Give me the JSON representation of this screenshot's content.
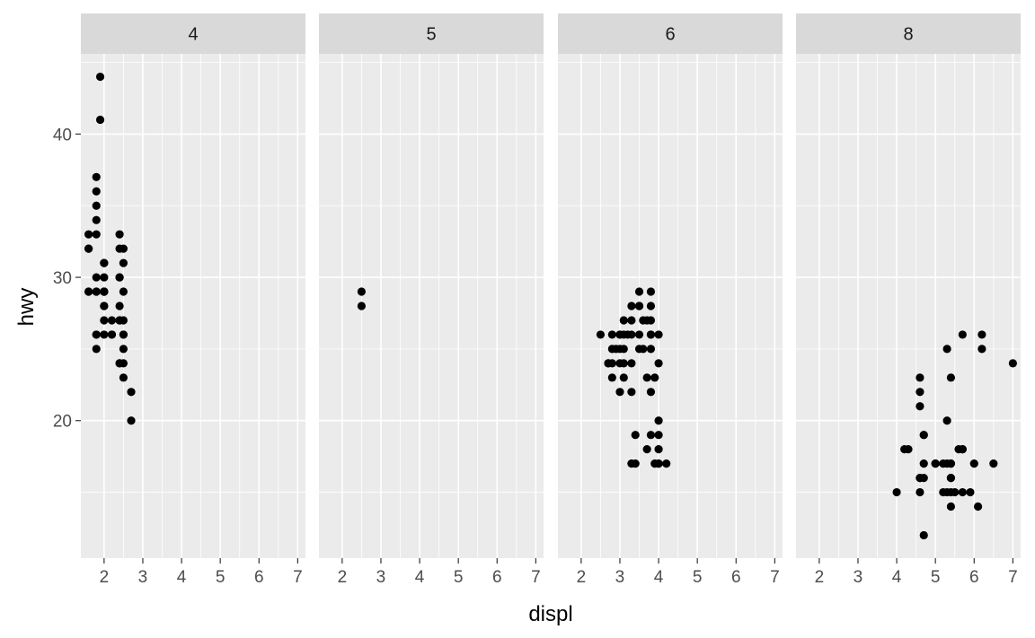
{
  "chart_data": {
    "type": "scatter",
    "facet_by": "cyl",
    "xlabel": "displ",
    "ylabel": "hwy",
    "xlim": [
      1.4,
      7.2
    ],
    "ylim": [
      10.4,
      45.6
    ],
    "x_ticks": [
      2,
      3,
      4,
      5,
      6,
      7
    ],
    "y_ticks": [
      20,
      30,
      40
    ],
    "grid": true,
    "panels": [
      {
        "label": "4",
        "points": [
          [
            1.8,
            29
          ],
          [
            2.0,
            29
          ],
          [
            2.0,
            31
          ],
          [
            2.0,
            30
          ],
          [
            1.8,
            26
          ],
          [
            1.8,
            25
          ],
          [
            2.0,
            28
          ],
          [
            2.0,
            27
          ],
          [
            2.4,
            27
          ],
          [
            2.4,
            30
          ],
          [
            2.5,
            26
          ],
          [
            2.5,
            29
          ],
          [
            2.2,
            26
          ],
          [
            2.2,
            27
          ],
          [
            2.4,
            30
          ],
          [
            2.4,
            33
          ],
          [
            2.4,
            32
          ],
          [
            2.5,
            32
          ],
          [
            2.0,
            29
          ],
          [
            2.7,
            20
          ],
          [
            2.7,
            22
          ],
          [
            2.4,
            24
          ],
          [
            2.4,
            24
          ],
          [
            2.5,
            25
          ],
          [
            2.5,
            23
          ],
          [
            1.6,
            33
          ],
          [
            1.6,
            32
          ],
          [
            1.6,
            32
          ],
          [
            1.6,
            29
          ],
          [
            1.8,
            37
          ],
          [
            1.8,
            35
          ],
          [
            1.8,
            36
          ],
          [
            1.8,
            34
          ],
          [
            1.8,
            29
          ],
          [
            1.9,
            44
          ],
          [
            1.9,
            41
          ],
          [
            2.0,
            29
          ],
          [
            2.0,
            26
          ],
          [
            2.0,
            28
          ],
          [
            2.0,
            29
          ],
          [
            2.0,
            31
          ],
          [
            2.4,
            27
          ],
          [
            2.5,
            26
          ],
          [
            2.5,
            31
          ],
          [
            2.5,
            24
          ],
          [
            2.2,
            26
          ],
          [
            2.4,
            28
          ],
          [
            2.5,
            27
          ],
          [
            1.8,
            30
          ],
          [
            1.8,
            33
          ],
          [
            1.8,
            26
          ],
          [
            1.6,
            29
          ]
        ]
      },
      {
        "label": "5",
        "points": [
          [
            2.5,
            29
          ],
          [
            2.5,
            28
          ]
        ]
      },
      {
        "label": "6",
        "points": [
          [
            2.8,
            26
          ],
          [
            3.1,
            27
          ],
          [
            2.8,
            25
          ],
          [
            3.1,
            25
          ],
          [
            2.8,
            24
          ],
          [
            3.0,
            25
          ],
          [
            3.1,
            23
          ],
          [
            3.8,
            26
          ],
          [
            3.8,
            29
          ],
          [
            3.3,
            26
          ],
          [
            3.8,
            22
          ],
          [
            3.3,
            27
          ],
          [
            3.3,
            24
          ],
          [
            3.8,
            28
          ],
          [
            3.1,
            26
          ],
          [
            3.5,
            28
          ],
          [
            3.7,
            23
          ],
          [
            3.9,
            17
          ],
          [
            4.0,
            17
          ],
          [
            4.0,
            18
          ],
          [
            3.4,
            19
          ],
          [
            3.7,
            18
          ],
          [
            4.0,
            19
          ],
          [
            3.5,
            29
          ],
          [
            3.5,
            28
          ],
          [
            3.8,
            27
          ],
          [
            4.0,
            24
          ],
          [
            4.0,
            26
          ],
          [
            4.0,
            20
          ],
          [
            3.0,
            22
          ],
          [
            2.5,
            26
          ],
          [
            2.7,
            24
          ],
          [
            3.3,
            17
          ],
          [
            3.4,
            17
          ],
          [
            4.2,
            17
          ],
          [
            3.8,
            26
          ],
          [
            3.8,
            25
          ],
          [
            3.0,
            26
          ],
          [
            3.9,
            23
          ],
          [
            3.7,
            27
          ],
          [
            3.0,
            24
          ],
          [
            2.8,
            23
          ],
          [
            2.9,
            25
          ],
          [
            3.2,
            26
          ],
          [
            3.6,
            27
          ],
          [
            3.6,
            25
          ],
          [
            3.3,
            28
          ],
          [
            3.8,
            19
          ],
          [
            4.0,
            17
          ],
          [
            3.5,
            26
          ],
          [
            3.5,
            25
          ],
          [
            3.0,
            26
          ],
          [
            3.1,
            24
          ],
          [
            2.7,
            24
          ],
          [
            3.3,
            22
          ]
        ]
      },
      {
        "label": "8",
        "points": [
          [
            5.7,
            26
          ],
          [
            6.2,
            26
          ],
          [
            6.2,
            25
          ],
          [
            7.0,
            24
          ],
          [
            5.3,
            20
          ],
          [
            5.3,
            15
          ],
          [
            5.7,
            18
          ],
          [
            6.5,
            17
          ],
          [
            5.3,
            17
          ],
          [
            6.1,
            14
          ],
          [
            4.7,
            12
          ],
          [
            5.2,
            17
          ],
          [
            4.7,
            19
          ],
          [
            4.6,
            16
          ],
          [
            4.6,
            16
          ],
          [
            5.4,
            17
          ],
          [
            5.4,
            17
          ],
          [
            5.4,
            15
          ],
          [
            4.6,
            23
          ],
          [
            5.4,
            23
          ],
          [
            4.6,
            22
          ],
          [
            5.3,
            25
          ],
          [
            4.2,
            18
          ],
          [
            4.0,
            15
          ],
          [
            4.7,
            17
          ],
          [
            4.7,
            16
          ],
          [
            5.7,
            15
          ],
          [
            4.6,
            21
          ],
          [
            5.0,
            17
          ],
          [
            5.0,
            17
          ],
          [
            4.7,
            19
          ],
          [
            4.6,
            15
          ],
          [
            4.3,
            18
          ],
          [
            5.4,
            16
          ],
          [
            5.6,
            18
          ],
          [
            5.7,
            18
          ],
          [
            5.9,
            15
          ],
          [
            6.0,
            17
          ],
          [
            5.5,
            15
          ],
          [
            5.2,
            15
          ],
          [
            5.4,
            16
          ],
          [
            5.4,
            14
          ]
        ]
      }
    ]
  }
}
